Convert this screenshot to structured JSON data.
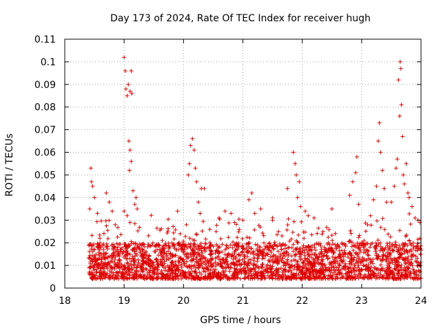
{
  "chart_data": {
    "type": "scatter",
    "title": "Day 173 of 2024, Rate Of TEC Index for receiver hugh",
    "xlabel": "GPS time / hours",
    "ylabel": "ROTI / TECUs",
    "xlim": [
      18,
      24
    ],
    "ylim": [
      0,
      0.11
    ],
    "xticks": [
      "18",
      "19",
      "20",
      "21",
      "22",
      "23",
      "24"
    ],
    "yticks": [
      "0",
      "0.01",
      "0.02",
      "0.03",
      "0.04",
      "0.05",
      "0.06",
      "0.07",
      "0.08",
      "0.09",
      "0.1",
      "0.11"
    ],
    "xtick_values": [
      18,
      19,
      20,
      21,
      22,
      23,
      24
    ],
    "ytick_values": [
      0,
      0.01,
      0.02,
      0.03,
      0.04,
      0.05,
      0.06,
      0.07,
      0.08,
      0.09,
      0.1,
      0.11
    ],
    "grid": true,
    "marker": "+",
    "color": "#e00000",
    "series": [
      {
        "name": "ROTI",
        "start_hour": 18.4,
        "end_hour": 24.0,
        "baseline_range": [
          0.004,
          0.02
        ],
        "notable_points": [
          [
            18.42,
            0.035
          ],
          [
            18.44,
            0.053
          ],
          [
            18.45,
            0.047
          ],
          [
            18.47,
            0.045
          ],
          [
            18.5,
            0.04
          ],
          [
            18.55,
            0.033
          ],
          [
            18.7,
            0.042
          ],
          [
            18.75,
            0.038
          ],
          [
            18.8,
            0.034
          ],
          [
            18.85,
            0.028
          ],
          [
            19.0,
            0.102
          ],
          [
            19.02,
            0.096
          ],
          [
            19.03,
            0.088
          ],
          [
            19.05,
            0.085
          ],
          [
            19.07,
            0.09
          ],
          [
            19.1,
            0.087
          ],
          [
            19.12,
            0.096
          ],
          [
            19.13,
            0.086
          ],
          [
            19.08,
            0.065
          ],
          [
            19.1,
            0.061
          ],
          [
            19.09,
            0.052
          ],
          [
            19.12,
            0.056
          ],
          [
            19.15,
            0.043
          ],
          [
            19.18,
            0.037
          ],
          [
            19.05,
            0.032
          ],
          [
            19.0,
            0.034
          ],
          [
            19.1,
            0.029
          ],
          [
            19.2,
            0.04
          ],
          [
            19.22,
            0.035
          ],
          [
            19.9,
            0.034
          ],
          [
            20.1,
            0.055
          ],
          [
            20.12,
            0.063
          ],
          [
            20.15,
            0.066
          ],
          [
            20.18,
            0.061
          ],
          [
            20.2,
            0.053
          ],
          [
            20.08,
            0.05
          ],
          [
            20.22,
            0.047
          ],
          [
            20.3,
            0.044
          ],
          [
            20.35,
            0.044
          ],
          [
            20.25,
            0.038
          ],
          [
            20.28,
            0.033
          ],
          [
            20.05,
            0.028
          ],
          [
            20.55,
            0.025
          ],
          [
            20.7,
            0.034
          ],
          [
            20.8,
            0.033
          ],
          [
            21.0,
            0.03
          ],
          [
            21.1,
            0.039
          ],
          [
            21.15,
            0.042
          ],
          [
            21.3,
            0.035
          ],
          [
            21.2,
            0.033
          ],
          [
            21.5,
            0.03
          ],
          [
            21.6,
            0.025
          ],
          [
            21.75,
            0.044
          ],
          [
            21.85,
            0.06
          ],
          [
            21.88,
            0.055
          ],
          [
            21.9,
            0.05
          ],
          [
            21.95,
            0.047
          ],
          [
            21.92,
            0.04
          ],
          [
            21.97,
            0.036
          ],
          [
            22.05,
            0.034
          ],
          [
            22.1,
            0.032
          ],
          [
            22.2,
            0.031
          ],
          [
            22.35,
            0.025
          ],
          [
            22.5,
            0.035
          ],
          [
            22.8,
            0.041
          ],
          [
            22.85,
            0.047
          ],
          [
            22.9,
            0.051
          ],
          [
            22.92,
            0.058
          ],
          [
            22.95,
            0.037
          ],
          [
            23.1,
            0.028
          ],
          [
            23.15,
            0.032
          ],
          [
            23.2,
            0.039
          ],
          [
            23.25,
            0.045
          ],
          [
            23.28,
            0.065
          ],
          [
            23.3,
            0.073
          ],
          [
            23.32,
            0.06
          ],
          [
            23.35,
            0.052
          ],
          [
            23.38,
            0.044
          ],
          [
            23.42,
            0.038
          ],
          [
            23.5,
            0.038
          ],
          [
            23.55,
            0.045
          ],
          [
            23.58,
            0.053
          ],
          [
            23.6,
            0.057
          ],
          [
            23.62,
            0.092
          ],
          [
            23.65,
            0.1
          ],
          [
            23.66,
            0.097
          ],
          [
            23.64,
            0.076
          ],
          [
            23.67,
            0.081
          ],
          [
            23.69,
            0.067
          ],
          [
            23.7,
            0.05
          ],
          [
            23.72,
            0.046
          ],
          [
            23.75,
            0.055
          ],
          [
            23.78,
            0.042
          ],
          [
            23.8,
            0.04
          ],
          [
            23.85,
            0.036
          ],
          [
            23.9,
            0.031
          ],
          [
            23.95,
            0.03
          ],
          [
            23.98,
            0.029
          ]
        ]
      }
    ]
  }
}
